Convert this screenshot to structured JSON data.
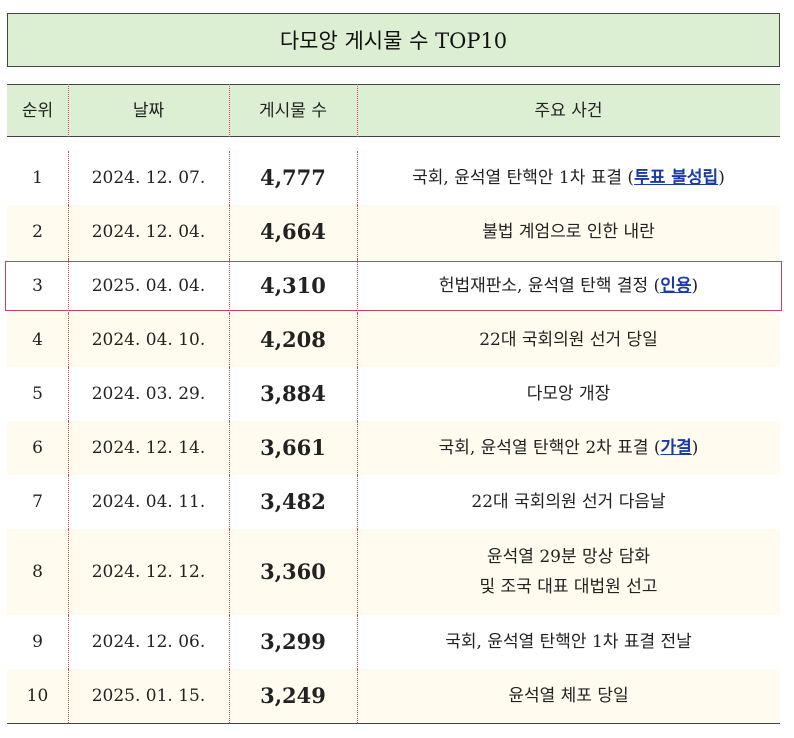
{
  "title": "다모앙 게시물 수 TOP10",
  "table": {
    "header": [
      "순위",
      "날짜",
      "게시물 수",
      "주요 사건"
    ],
    "rows": [
      {
        "rank": "1",
        "date": "2024. 12. 07.",
        "posts": "4,777",
        "event": [
          [
            {
              "text": "국회, 윤석열 탄핵안 1차 표결 ("
            },
            {
              "text": "투표 불성립",
              "link": true
            },
            {
              "text": ")"
            }
          ]
        ]
      },
      {
        "rank": "2",
        "date": "2024. 12. 04.",
        "posts": "4,664",
        "event": [
          [
            {
              "text": "불법 계엄으로 인한 내란"
            }
          ]
        ]
      },
      {
        "rank": "3",
        "date": "2025. 04. 04.",
        "posts": "4,310",
        "highlight": true,
        "event": [
          [
            {
              "text": "헌법재판소, 윤석열 탄핵 결정 ("
            },
            {
              "text": "인용",
              "link": true
            },
            {
              "text": ")"
            }
          ]
        ]
      },
      {
        "rank": "4",
        "date": "2024. 04. 10.",
        "posts": "4,208",
        "event": [
          [
            {
              "text": "22대 국회의원 선거 당일"
            }
          ]
        ]
      },
      {
        "rank": "5",
        "date": "2024. 03. 29.",
        "posts": "3,884",
        "event": [
          [
            {
              "text": "다모앙 개장"
            }
          ]
        ]
      },
      {
        "rank": "6",
        "date": "2024. 12. 14.",
        "posts": "3,661",
        "event": [
          [
            {
              "text": "국회, 윤석열 탄핵안 2차 표결 ("
            },
            {
              "text": "가결",
              "link": true
            },
            {
              "text": ")"
            }
          ]
        ]
      },
      {
        "rank": "7",
        "date": "2024. 04. 11.",
        "posts": "3,482",
        "event": [
          [
            {
              "text": "22대 국회의원 선거 다음날"
            }
          ]
        ]
      },
      {
        "rank": "8",
        "date": "2024. 12. 12.",
        "posts": "3,360",
        "event": [
          [
            {
              "text": "윤석열 29분 망상 담화"
            }
          ],
          [
            {
              "text": "및 조국 대표 대법원 선고"
            }
          ]
        ]
      },
      {
        "rank": "9",
        "date": "2024. 12. 06.",
        "posts": "3,299",
        "event": [
          [
            {
              "text": "국회, 윤석열 탄핵안 1차 표결 전날"
            }
          ]
        ]
      },
      {
        "rank": "10",
        "date": "2025. 01. 15.",
        "posts": "3,249",
        "event": [
          [
            {
              "text": "윤석열 체포 당일"
            }
          ]
        ]
      }
    ]
  }
}
